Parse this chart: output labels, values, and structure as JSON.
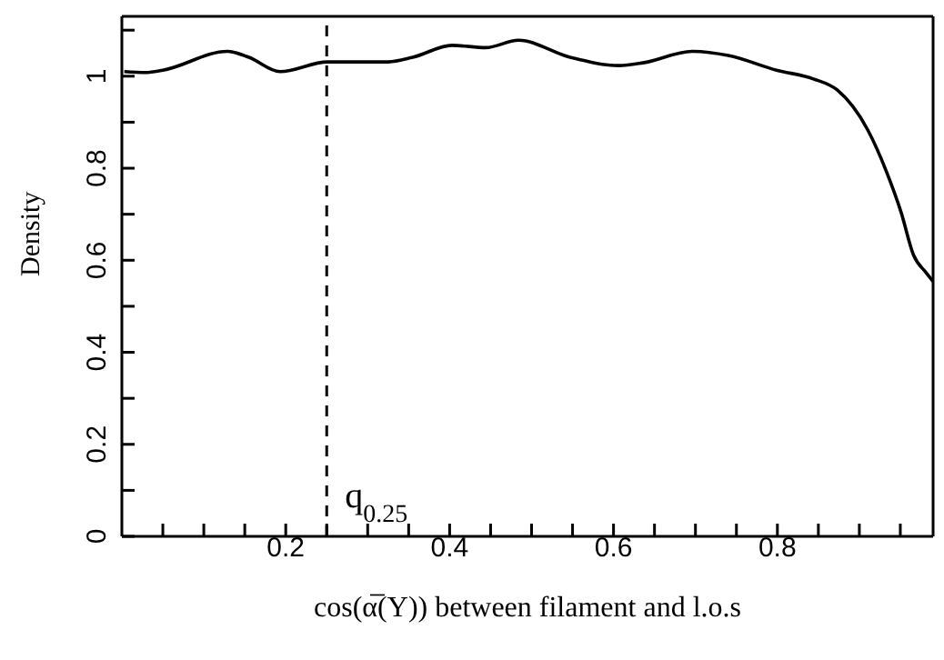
{
  "chart_data": {
    "type": "line",
    "xlabel": "cos(α̅(Y)) between filament and l.o.s",
    "ylabel": "Density",
    "x": [
      0.003,
      0.029,
      0.05,
      0.129,
      0.155,
      0.193,
      0.251,
      0.325,
      0.355,
      0.403,
      0.444,
      0.484,
      0.547,
      0.607,
      0.636,
      0.696,
      0.74,
      0.799,
      0.844,
      0.873,
      0.91,
      0.933,
      0.951,
      0.966,
      0.981,
      0.99
    ],
    "series": [
      {
        "color": "#000000",
        "values": [
          1.01,
          1.008,
          1.013,
          1.054,
          1.041,
          1.01,
          1.031,
          1.031,
          1.041,
          1.067,
          1.062,
          1.078,
          1.041,
          1.023,
          1.029,
          1.054,
          1.045,
          1.013,
          0.994,
          0.97,
          0.884,
          0.793,
          0.704,
          0.612,
          0.574,
          0.554
        ]
      }
    ],
    "xlim": [
      0,
      0.99
    ],
    "ylim": [
      0,
      1.13
    ],
    "xticks": [
      {
        "value": 0.05,
        "label": null
      },
      {
        "value": 0.1,
        "label": null
      },
      {
        "value": 0.15,
        "label": null
      },
      0.2,
      {
        "value": 0.25,
        "label": null
      },
      {
        "value": 0.3,
        "label": null
      },
      {
        "value": 0.35,
        "label": null
      },
      0.4,
      {
        "value": 0.45,
        "label": null
      },
      {
        "value": 0.5,
        "label": null
      },
      {
        "value": 0.55,
        "label": null
      },
      0.6,
      {
        "value": 0.65,
        "label": null
      },
      {
        "value": 0.7,
        "label": null
      },
      {
        "value": 0.75,
        "label": null
      },
      0.8,
      {
        "value": 0.85,
        "label": null
      },
      {
        "value": 0.9,
        "label": null
      },
      {
        "value": 0.95,
        "label": null
      }
    ],
    "yticks": [
      0,
      {
        "value": 0.1,
        "label": null
      },
      0.2,
      {
        "value": 0.3,
        "label": null
      },
      0.4,
      {
        "value": 0.5,
        "label": null
      },
      0.6,
      {
        "value": 0.7,
        "label": null
      },
      0.8,
      {
        "value": 0.9,
        "label": null
      },
      1,
      {
        "value": 1.1,
        "label": null
      }
    ],
    "ref_lines": [
      {
        "axis": "x",
        "value": 0.25,
        "label": "q$_{0.25}$",
        "line_style": "dashed",
        "color": "#000000"
      }
    ],
    "grid": false,
    "legend": false,
    "marker": "none",
    "line_style": "solid"
  }
}
